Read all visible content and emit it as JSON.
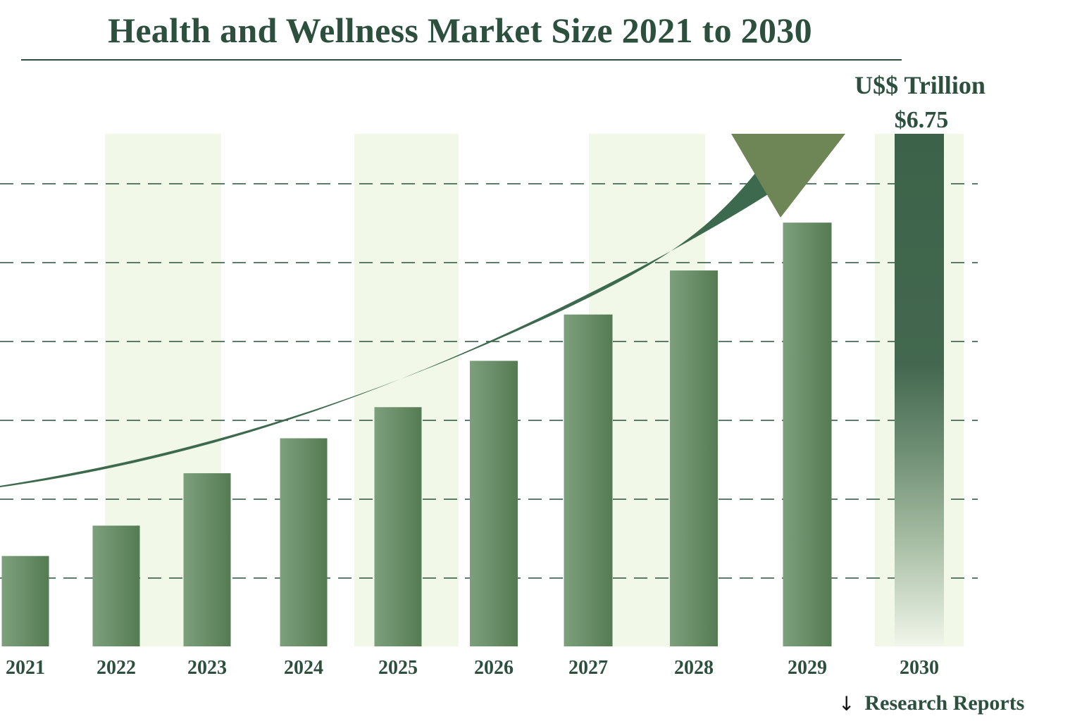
{
  "chart_data": {
    "type": "bar",
    "title": "Health and Wellness Market Size 2021 to 2030",
    "unit_label": "U$$ Trillion",
    "xlabel": "",
    "ylabel": "U$$ Trillion",
    "categories": [
      "2021",
      "2022",
      "2023",
      "2024",
      "2025",
      "2026",
      "2027",
      "2028",
      "2029",
      "2030"
    ],
    "values": [
      1.19,
      1.59,
      2.28,
      2.74,
      3.15,
      3.76,
      4.37,
      4.95,
      5.58,
      6.75
    ],
    "data_labels": [
      {
        "category": "2030",
        "text": "$6.75"
      }
    ],
    "ylim": [
      0,
      6.75
    ],
    "grid": "horizontal dashed",
    "trend_arrow": "upward curved arrow spanning 2021 to 2029",
    "highlight_bands": [
      "2022-2023",
      "2025",
      "2027-2028",
      "2030"
    ],
    "colors": {
      "bar_light": "#7da07c",
      "bar_dark": "#577d55",
      "highlight_bar": "#3d6349",
      "band": "#f1f8e8",
      "arrow_body": "#3d6a4e",
      "arrow_head": "#6e8656",
      "text": "#2c4f3e",
      "grid": "#2c4f3e"
    }
  },
  "footer": {
    "icon": "down-arrow-icon",
    "label": "Research Reports"
  }
}
